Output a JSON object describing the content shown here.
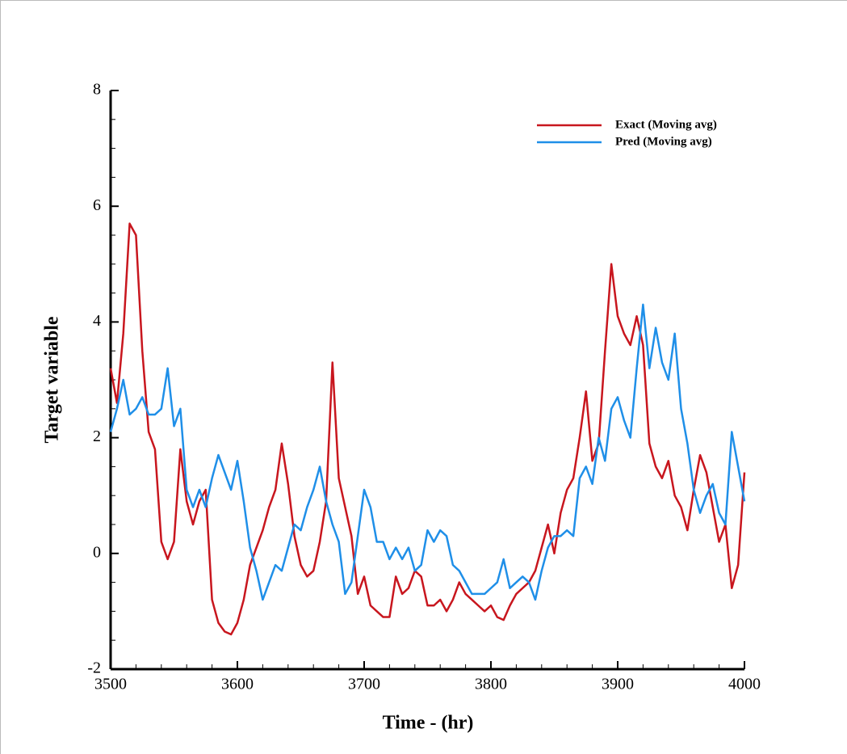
{
  "chart_data": {
    "type": "line",
    "xlabel": "Time - (hr)",
    "ylabel": "Target variable",
    "x": [
      3500,
      3505,
      3510,
      3515,
      3520,
      3525,
      3530,
      3535,
      3540,
      3545,
      3550,
      3555,
      3560,
      3565,
      3570,
      3575,
      3580,
      3585,
      3590,
      3595,
      3600,
      3605,
      3610,
      3615,
      3620,
      3625,
      3630,
      3635,
      3640,
      3645,
      3650,
      3655,
      3660,
      3665,
      3670,
      3675,
      3680,
      3685,
      3690,
      3695,
      3700,
      3705,
      3710,
      3715,
      3720,
      3725,
      3730,
      3735,
      3740,
      3745,
      3750,
      3755,
      3760,
      3765,
      3770,
      3775,
      3780,
      3785,
      3790,
      3795,
      3800,
      3805,
      3810,
      3815,
      3820,
      3825,
      3830,
      3835,
      3840,
      3845,
      3850,
      3855,
      3860,
      3865,
      3870,
      3875,
      3880,
      3885,
      3890,
      3895,
      3900,
      3905,
      3910,
      3915,
      3920,
      3925,
      3930,
      3935,
      3940,
      3945,
      3950,
      3955,
      3960,
      3965,
      3970,
      3975,
      3980,
      3985,
      3990,
      3995,
      4000
    ],
    "series": [
      {
        "name": "Exact (Moving avg)",
        "color": "#c8161e",
        "values": [
          3.2,
          2.6,
          3.8,
          5.7,
          5.5,
          3.5,
          2.1,
          1.8,
          0.2,
          -0.1,
          0.2,
          1.8,
          0.9,
          0.5,
          0.9,
          1.1,
          -0.8,
          -1.2,
          -1.35,
          -1.4,
          -1.2,
          -0.8,
          -0.2,
          0.1,
          0.4,
          0.8,
          1.1,
          1.9,
          1.2,
          0.3,
          -0.2,
          -0.4,
          -0.3,
          0.2,
          0.9,
          3.3,
          1.3,
          0.8,
          0.3,
          -0.7,
          -0.4,
          -0.9,
          -1.0,
          -1.1,
          -1.1,
          -0.4,
          -0.7,
          -0.6,
          -0.3,
          -0.4,
          -0.9,
          -0.9,
          -0.8,
          -1.0,
          -0.8,
          -0.5,
          -0.7,
          -0.8,
          -0.9,
          -1.0,
          -0.9,
          -1.1,
          -1.15,
          -0.9,
          -0.7,
          -0.6,
          -0.5,
          -0.3,
          0.1,
          0.5,
          0.0,
          0.7,
          1.1,
          1.3,
          2.0,
          2.8,
          1.6,
          1.9,
          3.5,
          5.0,
          4.1,
          3.8,
          3.6,
          4.1,
          3.6,
          1.9,
          1.5,
          1.3,
          1.6,
          1.0,
          0.8,
          0.4,
          1.1,
          1.7,
          1.4,
          0.8,
          0.2,
          0.5,
          -0.6,
          -0.2,
          1.4
        ]
      },
      {
        "name": "Pred (Moving avg)",
        "color": "#1f8fe8",
        "values": [
          2.1,
          2.5,
          3.0,
          2.4,
          2.5,
          2.7,
          2.4,
          2.4,
          2.5,
          3.2,
          2.2,
          2.5,
          1.1,
          0.8,
          1.1,
          0.8,
          1.3,
          1.7,
          1.4,
          1.1,
          1.6,
          0.9,
          0.1,
          -0.3,
          -0.8,
          -0.5,
          -0.2,
          -0.3,
          0.1,
          0.5,
          0.4,
          0.8,
          1.1,
          1.5,
          0.9,
          0.5,
          0.2,
          -0.7,
          -0.5,
          0.3,
          1.1,
          0.8,
          0.2,
          0.2,
          -0.1,
          0.1,
          -0.1,
          0.1,
          -0.3,
          -0.2,
          0.4,
          0.2,
          0.4,
          0.3,
          -0.2,
          -0.3,
          -0.5,
          -0.7,
          -0.7,
          -0.7,
          -0.6,
          -0.5,
          -0.1,
          -0.6,
          -0.5,
          -0.4,
          -0.5,
          -0.8,
          -0.3,
          0.1,
          0.3,
          0.3,
          0.4,
          0.3,
          1.3,
          1.5,
          1.2,
          2.0,
          1.6,
          2.5,
          2.7,
          2.3,
          2.0,
          3.2,
          4.3,
          3.2,
          3.9,
          3.3,
          3.0,
          3.8,
          2.5,
          1.9,
          1.1,
          0.7,
          1.0,
          1.2,
          0.7,
          0.5,
          2.1,
          1.5,
          0.9
        ]
      }
    ],
    "xlim": [
      3500,
      4000
    ],
    "ylim": [
      -2,
      8
    ],
    "xticks": [
      3500,
      3600,
      3700,
      3800,
      3900,
      4000
    ],
    "yticks": [
      -2,
      0,
      2,
      4,
      6,
      8
    ],
    "xminorticks": [
      3520,
      3540,
      3560,
      3580,
      3620,
      3640,
      3660,
      3680,
      3720,
      3740,
      3760,
      3780,
      3820,
      3840,
      3860,
      3880,
      3920,
      3940,
      3960,
      3980
    ],
    "yminorticks": [
      -1.5,
      -1,
      -0.5,
      0.5,
      1,
      1.5,
      2.5,
      3,
      3.5,
      4.5,
      5,
      5.5,
      6.5,
      7,
      7.5
    ],
    "grid": false,
    "legend": "upper right"
  }
}
